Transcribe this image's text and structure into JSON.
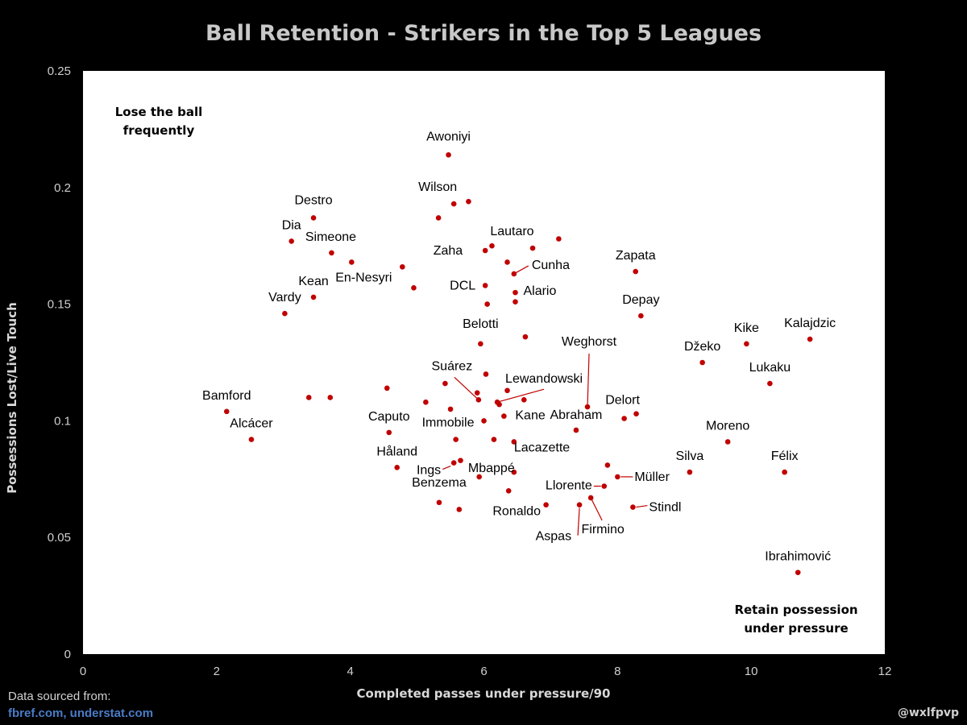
{
  "chart_data": {
    "type": "scatter",
    "title": "Ball Retention - Strikers in the Top 5 Leagues",
    "xlabel": "Completed passes under pressure/90",
    "ylabel": "Possessions Lost/Live Touch",
    "xlim": [
      0,
      12
    ],
    "ylim": [
      0,
      0.25
    ],
    "xticks": [
      "0",
      "2",
      "4",
      "6",
      "8",
      "10",
      "12"
    ],
    "yticks": [
      "0",
      "0.05",
      "0.1",
      "0.15",
      "0.2",
      "0.25"
    ],
    "point_color": "#c00000",
    "corner_labels": {
      "top_left": [
        "Lose the ball",
        "frequently"
      ],
      "bottom_right": [
        "Retain possession",
        "under pressure"
      ]
    },
    "points": [
      {
        "name": "Awoniyi",
        "x": 5.47,
        "y": 0.214
      },
      {
        "name": "Wilson",
        "x": 5.55,
        "y": 0.193
      },
      {
        "name": "",
        "x": 5.77,
        "y": 0.194
      },
      {
        "name": "",
        "x": 5.32,
        "y": 0.187
      },
      {
        "name": "Destro",
        "x": 3.45,
        "y": 0.187
      },
      {
        "name": "Dia",
        "x": 3.12,
        "y": 0.177
      },
      {
        "name": "Simeone",
        "x": 3.72,
        "y": 0.172
      },
      {
        "name": "",
        "x": 4.02,
        "y": 0.168
      },
      {
        "name": "En-Nesyri",
        "x": 4.78,
        "y": 0.166
      },
      {
        "name": "",
        "x": 4.95,
        "y": 0.157
      },
      {
        "name": "Kean",
        "x": 3.45,
        "y": 0.153
      },
      {
        "name": "Vardy",
        "x": 3.02,
        "y": 0.146
      },
      {
        "name": "Zaha",
        "x": 6.02,
        "y": 0.173
      },
      {
        "name": "Lautaro",
        "x": 6.12,
        "y": 0.175
      },
      {
        "name": "",
        "x": 6.35,
        "y": 0.168
      },
      {
        "name": "",
        "x": 6.73,
        "y": 0.174
      },
      {
        "name": "",
        "x": 7.12,
        "y": 0.178
      },
      {
        "name": "Cunha",
        "x": 6.45,
        "y": 0.163
      },
      {
        "name": "DCL",
        "x": 6.02,
        "y": 0.158
      },
      {
        "name": "Alario",
        "x": 6.47,
        "y": 0.155
      },
      {
        "name": "",
        "x": 6.47,
        "y": 0.151
      },
      {
        "name": "",
        "x": 6.05,
        "y": 0.15
      },
      {
        "name": "Zapata",
        "x": 8.27,
        "y": 0.164
      },
      {
        "name": "Depay",
        "x": 8.35,
        "y": 0.145
      },
      {
        "name": "Belotti",
        "x": 5.95,
        "y": 0.133
      },
      {
        "name": "",
        "x": 6.62,
        "y": 0.136
      },
      {
        "name": "Weghorst",
        "x": 7.55,
        "y": 0.106
      },
      {
        "name": "Kike",
        "x": 9.93,
        "y": 0.133
      },
      {
        "name": "Kalajdzic",
        "x": 10.88,
        "y": 0.135
      },
      {
        "name": "Džeko",
        "x": 9.27,
        "y": 0.125
      },
      {
        "name": "Lukaku",
        "x": 10.28,
        "y": 0.116
      },
      {
        "name": "",
        "x": 6.03,
        "y": 0.12
      },
      {
        "name": "Suárez",
        "x": 5.92,
        "y": 0.109
      },
      {
        "name": "",
        "x": 5.42,
        "y": 0.116
      },
      {
        "name": "",
        "x": 5.9,
        "y": 0.112
      },
      {
        "name": "Lewandowski",
        "x": 6.2,
        "y": 0.108
      },
      {
        "name": "",
        "x": 6.35,
        "y": 0.113
      },
      {
        "name": "",
        "x": 6.6,
        "y": 0.109
      },
      {
        "name": "",
        "x": 6.23,
        "y": 0.107
      },
      {
        "name": "",
        "x": 5.13,
        "y": 0.108
      },
      {
        "name": "",
        "x": 5.5,
        "y": 0.105
      },
      {
        "name": "",
        "x": 4.55,
        "y": 0.114
      },
      {
        "name": "Kane",
        "x": 6.3,
        "y": 0.102
      },
      {
        "name": "Immobile",
        "x": 6.0,
        "y": 0.1
      },
      {
        "name": "Abraham",
        "x": 7.38,
        "y": 0.096
      },
      {
        "name": "Delort",
        "x": 8.28,
        "y": 0.103
      },
      {
        "name": "",
        "x": 8.1,
        "y": 0.101
      },
      {
        "name": "Bamford",
        "x": 2.15,
        "y": 0.104
      },
      {
        "name": "",
        "x": 3.38,
        "y": 0.11
      },
      {
        "name": "",
        "x": 3.7,
        "y": 0.11
      },
      {
        "name": "Alcácer",
        "x": 2.52,
        "y": 0.092
      },
      {
        "name": "Caputo",
        "x": 4.58,
        "y": 0.095
      },
      {
        "name": "Lacazette",
        "x": 6.45,
        "y": 0.091
      },
      {
        "name": "",
        "x": 5.58,
        "y": 0.092
      },
      {
        "name": "",
        "x": 6.15,
        "y": 0.092
      },
      {
        "name": "Moreno",
        "x": 9.65,
        "y": 0.091
      },
      {
        "name": "Håland",
        "x": 4.7,
        "y": 0.08
      },
      {
        "name": "Ings",
        "x": 5.55,
        "y": 0.082
      },
      {
        "name": "",
        "x": 5.65,
        "y": 0.083
      },
      {
        "name": "Mbappé",
        "x": 6.45,
        "y": 0.078
      },
      {
        "name": "",
        "x": 5.93,
        "y": 0.076
      },
      {
        "name": "Benzema",
        "x": 5.33,
        "y": 0.065
      },
      {
        "name": "",
        "x": 5.63,
        "y": 0.062
      },
      {
        "name": "Ronaldo",
        "x": 6.37,
        "y": 0.07
      },
      {
        "name": "",
        "x": 6.93,
        "y": 0.064
      },
      {
        "name": "Llorente",
        "x": 7.8,
        "y": 0.072
      },
      {
        "name": "Müller",
        "x": 8.0,
        "y": 0.076
      },
      {
        "name": "",
        "x": 7.85,
        "y": 0.081
      },
      {
        "name": "Aspas",
        "x": 7.43,
        "y": 0.064
      },
      {
        "name": "Firmino",
        "x": 7.6,
        "y": 0.067
      },
      {
        "name": "Stindl",
        "x": 8.23,
        "y": 0.063
      },
      {
        "name": "Silva",
        "x": 9.08,
        "y": 0.078
      },
      {
        "name": "Félix",
        "x": 10.5,
        "y": 0.078
      },
      {
        "name": "Ibrahimović",
        "x": 10.7,
        "y": 0.035
      }
    ]
  },
  "footer": {
    "source_line1": "Data sourced from:",
    "source_line2": "fbref.com, understat.com",
    "handle": "@wxlfpvp"
  }
}
